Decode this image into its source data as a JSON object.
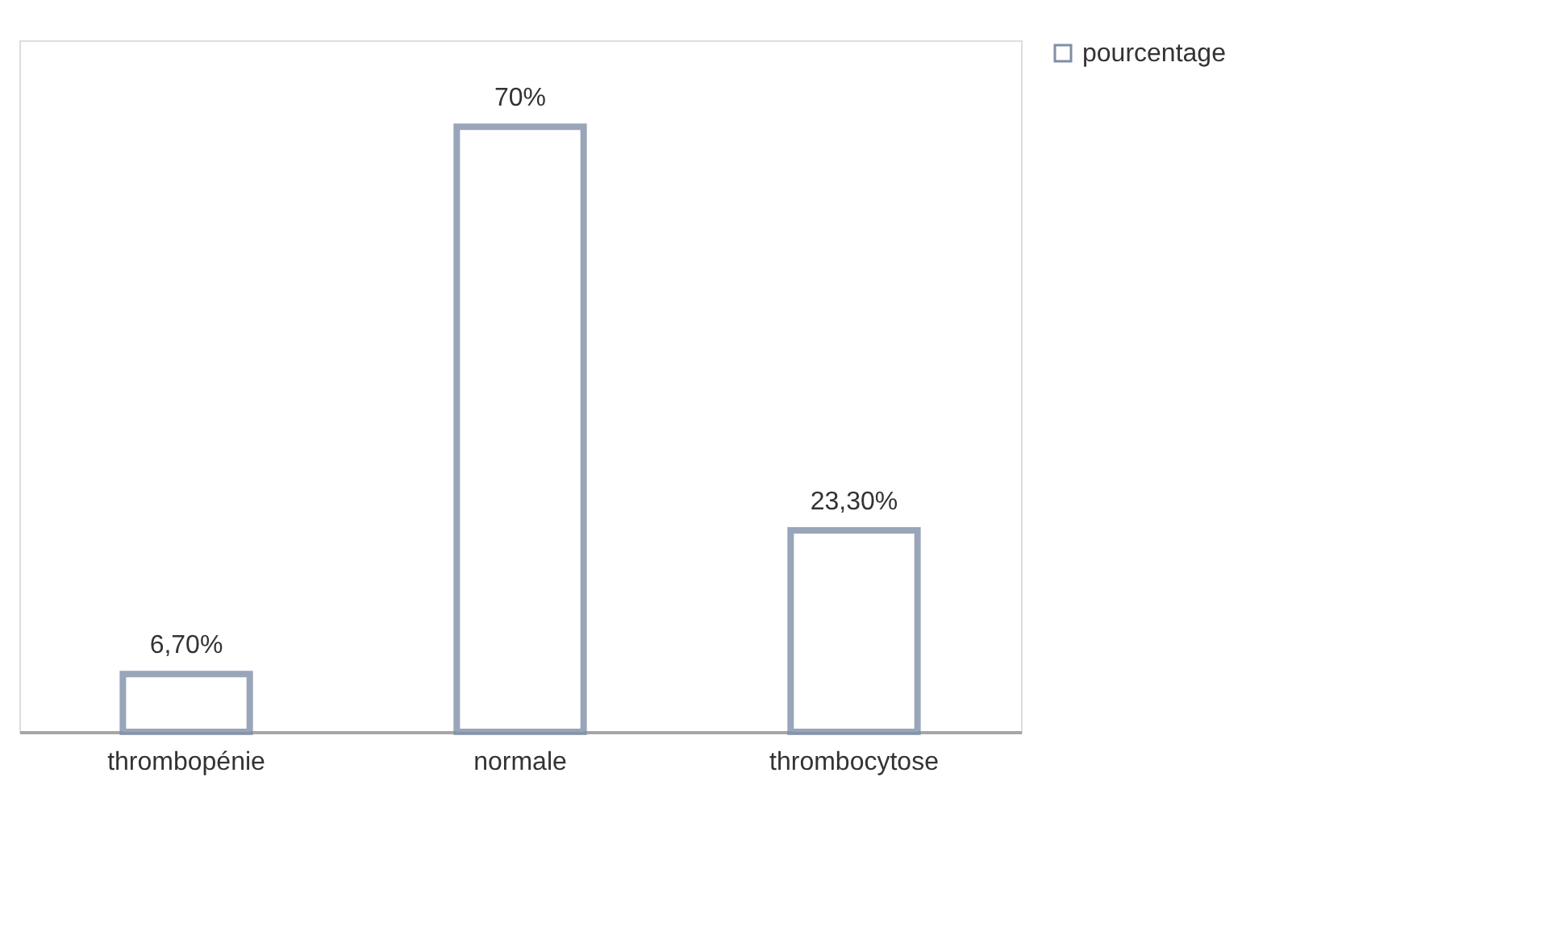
{
  "chart_data": {
    "type": "bar",
    "categories": [
      "thrombopénie",
      "normale",
      "thrombocytose"
    ],
    "series": [
      {
        "name": "pourcentage",
        "color": "#7f8fa6",
        "values": [
          6.7,
          70,
          23.3
        ],
        "value_labels": [
          "6,70%",
          "70%",
          "23,30%"
        ]
      }
    ],
    "ylim": [
      0,
      80
    ],
    "legend": "right",
    "grid": false
  }
}
